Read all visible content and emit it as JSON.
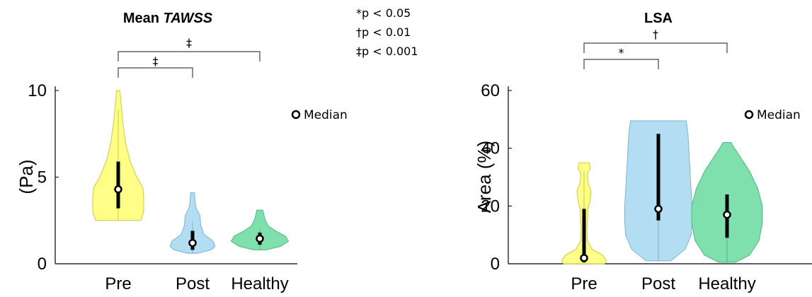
{
  "legend_note": [
    "*p < 0.05",
    "†p < 0.01",
    "‡p < 0.001"
  ],
  "chart_data": [
    {
      "type": "violin",
      "title_plain": "Mean ",
      "title_italic": "TAWSS",
      "ylabel": "(Pa)",
      "ylim": [
        0,
        10
      ],
      "yticks": [
        0,
        5,
        10
      ],
      "categories": [
        "Pre",
        "Post",
        "Healthy"
      ],
      "colors": [
        "#ffff88",
        "#b3ddf2",
        "#7fe0ad"
      ],
      "edge_colors": [
        "#c9c94a",
        "#7fb3cc",
        "#4fb585"
      ],
      "median_label": "Median",
      "violins": [
        {
          "category": "Pre",
          "min": 2.5,
          "max": 10,
          "median": 4.3,
          "q1": 3.2,
          "q3": 5.9,
          "whisker_high": 8.9,
          "profile": [
            [
              2.5,
              0.55
            ],
            [
              3.0,
              0.62
            ],
            [
              3.8,
              0.62
            ],
            [
              4.4,
              0.6
            ],
            [
              5.0,
              0.45
            ],
            [
              6.0,
              0.28
            ],
            [
              7.0,
              0.18
            ],
            [
              8.0,
              0.12
            ],
            [
              9.0,
              0.08
            ],
            [
              10.0,
              0.04
            ]
          ]
        },
        {
          "category": "Post",
          "min": 0.6,
          "max": 4.1,
          "median": 1.2,
          "q1": 0.8,
          "q3": 1.9,
          "whisker_high": 2.4,
          "profile": [
            [
              0.6,
              0.12
            ],
            [
              0.8,
              0.45
            ],
            [
              1.0,
              0.55
            ],
            [
              1.3,
              0.5
            ],
            [
              1.7,
              0.28
            ],
            [
              2.2,
              0.2
            ],
            [
              2.8,
              0.18
            ],
            [
              3.2,
              0.09
            ],
            [
              3.6,
              0.06
            ],
            [
              4.1,
              0.05
            ]
          ]
        },
        {
          "category": "Healthy",
          "min": 0.8,
          "max": 3.1,
          "median": 1.45,
          "q1": 1.1,
          "q3": 1.8,
          "whisker_high": 2.0,
          "profile": [
            [
              0.8,
              0.15
            ],
            [
              1.0,
              0.5
            ],
            [
              1.3,
              0.7
            ],
            [
              1.6,
              0.62
            ],
            [
              1.9,
              0.38
            ],
            [
              2.2,
              0.2
            ],
            [
              2.6,
              0.12
            ],
            [
              3.1,
              0.07
            ]
          ]
        }
      ],
      "significance": [
        {
          "from": "Pre",
          "to": "Post",
          "symbol": "‡"
        },
        {
          "from": "Pre",
          "to": "Healthy",
          "symbol": "‡"
        }
      ]
    },
    {
      "type": "violin",
      "title_plain": "LSA",
      "title_italic": "",
      "ylabel": "Area (%)",
      "ylim": [
        0,
        60
      ],
      "yticks": [
        0,
        20,
        40,
        60
      ],
      "categories": [
        "Pre",
        "Post",
        "Healthy"
      ],
      "colors": [
        "#ffff88",
        "#b3ddf2",
        "#7fe0ad"
      ],
      "edge_colors": [
        "#c9c94a",
        "#7fb3cc",
        "#4fb585"
      ],
      "median_label": "Median",
      "violins": [
        {
          "category": "Pre",
          "min": 0,
          "max": 35,
          "median": 2.0,
          "q1": 0.5,
          "q3": 19,
          "whisker_high": 32,
          "profile": [
            [
              0,
              0.5
            ],
            [
              1,
              0.55
            ],
            [
              3,
              0.45
            ],
            [
              5,
              0.2
            ],
            [
              8,
              0.08
            ],
            [
              12,
              0.07
            ],
            [
              16,
              0.09
            ],
            [
              19,
              0.1
            ],
            [
              22,
              0.15
            ],
            [
              25,
              0.17
            ],
            [
              28,
              0.1
            ],
            [
              31,
              0.08
            ],
            [
              33,
              0.15
            ],
            [
              35,
              0.12
            ]
          ]
        },
        {
          "category": "Post",
          "min": 1,
          "max": 49.5,
          "median": 19,
          "q1": 15,
          "q3": 45,
          "whisker_high": 45,
          "profile": [
            [
              1,
              0.3
            ],
            [
              5,
              0.65
            ],
            [
              10,
              0.8
            ],
            [
              15,
              0.82
            ],
            [
              20,
              0.82
            ],
            [
              30,
              0.78
            ],
            [
              40,
              0.74
            ],
            [
              45,
              0.72
            ],
            [
              49.5,
              0.68
            ]
          ]
        },
        {
          "category": "Healthy",
          "min": 0.5,
          "max": 42,
          "median": 17,
          "q1": 9,
          "q3": 24,
          "whisker_high": 24,
          "profile": [
            [
              0.5,
              0.2
            ],
            [
              3,
              0.55
            ],
            [
              8,
              0.78
            ],
            [
              14,
              0.86
            ],
            [
              20,
              0.86
            ],
            [
              26,
              0.75
            ],
            [
              32,
              0.55
            ],
            [
              37,
              0.32
            ],
            [
              40,
              0.18
            ],
            [
              42,
              0.1
            ]
          ]
        }
      ],
      "significance": [
        {
          "from": "Pre",
          "to": "Post",
          "symbol": "*"
        },
        {
          "from": "Pre",
          "to": "Healthy",
          "symbol": "†"
        }
      ]
    }
  ]
}
